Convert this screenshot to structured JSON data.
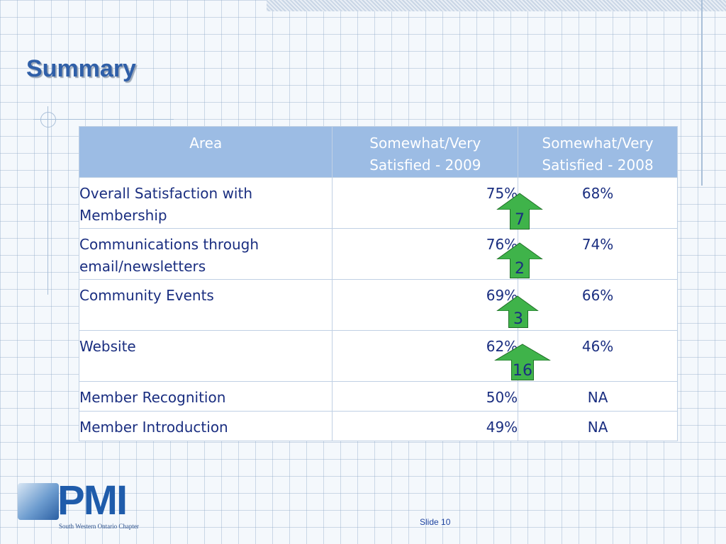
{
  "slide": {
    "title": "Summary",
    "slide_label": "Slide 10"
  },
  "table": {
    "headers": {
      "area": "Area",
      "sat2009_line1": "Somewhat/Very",
      "sat2009_line2": "Satisfied - 2009",
      "sat2008_line1": "Somewhat/Very",
      "sat2008_line2": "Satisfied - 2008"
    },
    "rows": [
      {
        "area": "Overall Satisfaction with Membership",
        "sat2009": "75%",
        "sat2008": "68%"
      },
      {
        "area": "Communications through email/newsletters",
        "sat2009": "76%",
        "sat2008": "74%"
      },
      {
        "area": "Community Events",
        "sat2009": "69%",
        "sat2008": "66%"
      },
      {
        "area": "Website",
        "sat2009": "62%",
        "sat2008": "46%"
      },
      {
        "area": "Member Recognition",
        "sat2009": "50%",
        "sat2008": "NA"
      },
      {
        "area": "Member Introduction",
        "sat2009": "49%",
        "sat2008": "NA"
      }
    ]
  },
  "arrows": [
    {
      "value": "7",
      "direction": "up"
    },
    {
      "value": "2",
      "direction": "up"
    },
    {
      "value": "3",
      "direction": "up"
    },
    {
      "value": "16",
      "direction": "up"
    }
  ],
  "logo": {
    "letters": "PMI",
    "subtitle": "South Western Ontario Chapter"
  },
  "colors": {
    "title": "#2f5fa8",
    "header_bg": "#9cbce4",
    "table_text": "#1a2e80",
    "arrow_fill": "#3fb34a"
  }
}
